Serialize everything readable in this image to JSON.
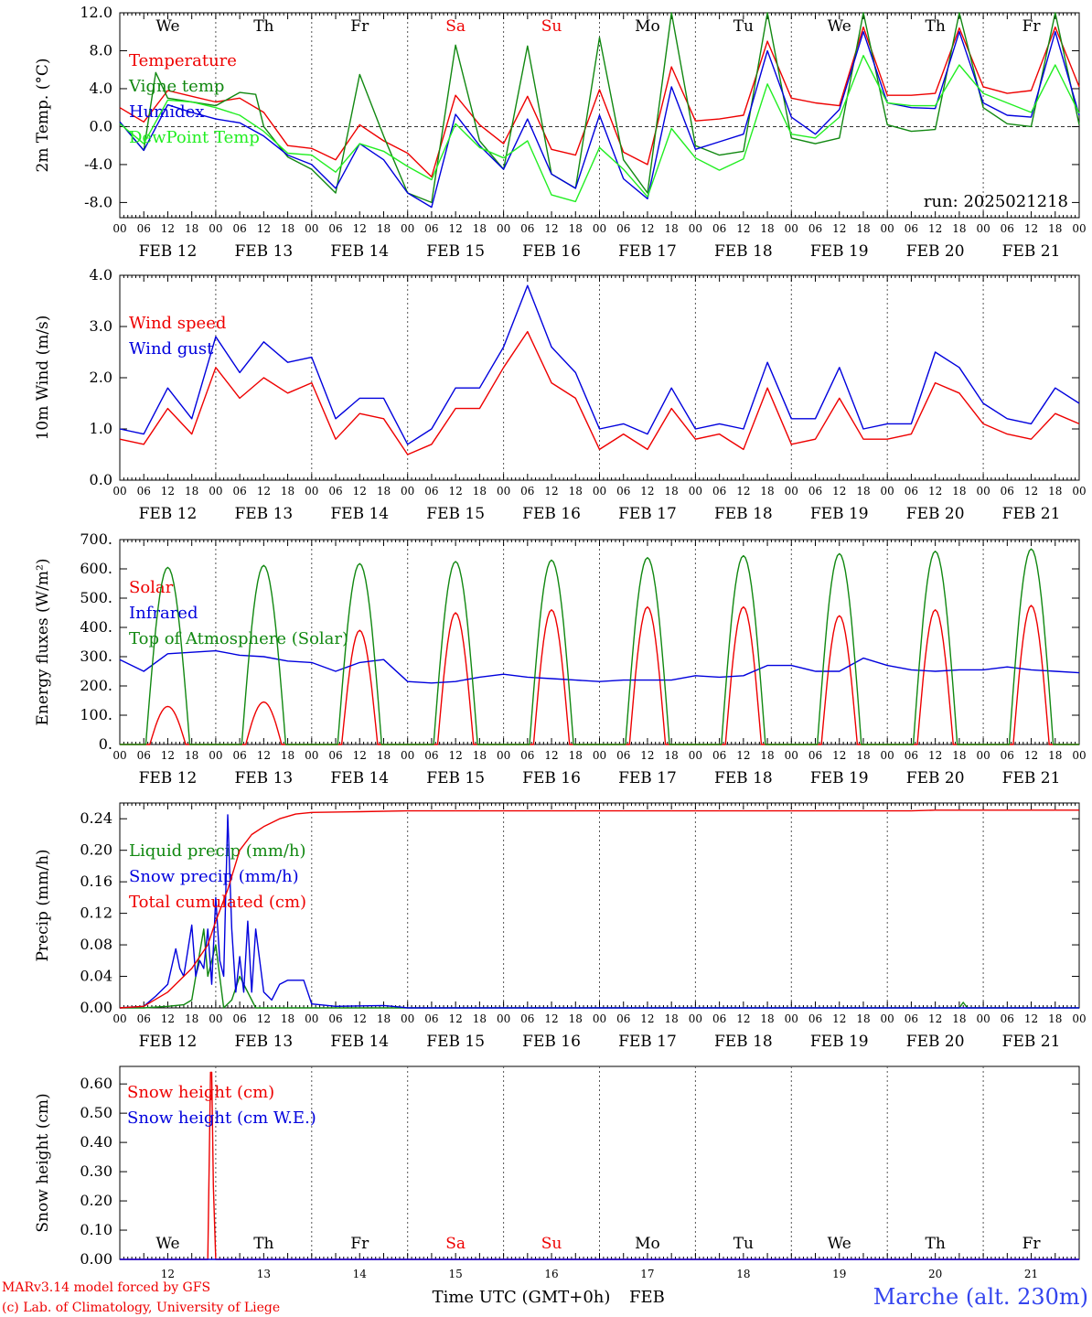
{
  "colors": {
    "red": "#ee0000",
    "green": "#118811",
    "blue": "#0000dd",
    "lightgreen": "#22ee22",
    "axis": "#000000"
  },
  "days": [
    "We",
    "Th",
    "Fr",
    "Sa",
    "Su",
    "Mo",
    "Tu",
    "We",
    "Th",
    "Fr"
  ],
  "weekend_days": [
    3,
    4
  ],
  "hour_ticks": [
    "00",
    "06",
    "12",
    "18"
  ],
  "final_tick": "00",
  "dates": [
    "FEB 12",
    "FEB 13",
    "FEB 14",
    "FEB 15",
    "FEB 16",
    "FEB 17",
    "FEB 18",
    "FEB 19",
    "FEB 20",
    "FEB 21"
  ],
  "day_numbers": [
    "12",
    "13",
    "14",
    "15",
    "16",
    "17",
    "18",
    "19",
    "20",
    "21"
  ],
  "chart_data": [
    {
      "type": "line",
      "ylabel": "2m Temp. (°C)",
      "ylim": [
        -9.6,
        12.0
      ],
      "yticks": [
        "-8.0",
        "-4.0",
        "0.0",
        "4.0",
        "8.0",
        "12.0"
      ],
      "annotation": "run: 2025021218",
      "x_unit": "hours from FEB 12 00 UTC",
      "series": [
        {
          "name": "Temperature",
          "color": "red",
          "x": [
            0,
            6,
            12,
            18,
            24,
            30,
            36,
            42,
            48,
            54,
            60,
            66,
            72,
            78,
            84,
            90,
            96,
            102,
            108,
            114,
            120,
            126,
            132,
            138,
            144,
            150,
            156,
            162,
            168,
            174,
            180,
            186,
            192,
            198,
            204,
            210,
            216,
            222,
            228,
            234,
            240
          ],
          "y": [
            2.0,
            0.5,
            3.8,
            3.2,
            2.6,
            3.0,
            1.5,
            -2.0,
            -2.3,
            -3.5,
            0.2,
            -1.5,
            -2.8,
            -5.3,
            3.3,
            0.2,
            -1.8,
            3.2,
            -2.4,
            -3.0,
            3.9,
            -2.7,
            -4.0,
            6.3,
            0.6,
            0.8,
            1.2,
            9.0,
            3.0,
            2.5,
            2.2,
            10.5,
            3.3,
            3.3,
            3.5,
            10.4,
            4.2,
            3.5,
            3.8,
            10.5,
            4.2
          ]
        },
        {
          "name": "Vigne temp",
          "color": "green",
          "x": [
            0,
            6,
            9,
            12,
            18,
            24,
            30,
            34,
            36,
            42,
            48,
            54,
            60,
            66,
            72,
            78,
            84,
            90,
            96,
            102,
            108,
            114,
            120,
            126,
            132,
            138,
            144,
            150,
            156,
            162,
            168,
            174,
            180,
            186,
            192,
            198,
            204,
            210,
            216,
            222,
            228,
            234,
            240
          ],
          "y": [
            0.5,
            -2.5,
            5.7,
            3.0,
            2.6,
            2.2,
            3.6,
            3.4,
            0.0,
            -3.2,
            -4.5,
            -7.0,
            5.5,
            -1.0,
            -7.0,
            -8.0,
            8.6,
            -1.5,
            -4.5,
            8.5,
            -5.0,
            -6.5,
            9.4,
            -3.5,
            -7.0,
            12.5,
            -2.0,
            -3.0,
            -2.6,
            13.0,
            -1.2,
            -1.8,
            -1.2,
            12.8,
            0.2,
            -0.5,
            -0.3,
            12.5,
            2.0,
            0.3,
            0.0,
            12.0,
            0.2
          ]
        },
        {
          "name": "Humidex",
          "color": "blue",
          "x": [
            0,
            6,
            12,
            18,
            24,
            30,
            36,
            42,
            48,
            54,
            60,
            66,
            72,
            78,
            84,
            90,
            96,
            102,
            108,
            114,
            120,
            126,
            132,
            138,
            144,
            150,
            156,
            162,
            168,
            174,
            180,
            186,
            192,
            198,
            204,
            210,
            216,
            222,
            228,
            234,
            240
          ],
          "y": [
            0.5,
            -2.5,
            2.3,
            1.5,
            0.8,
            0.4,
            -1.0,
            -3.0,
            -4.0,
            -6.5,
            -1.8,
            -3.5,
            -7.0,
            -8.5,
            1.3,
            -2.0,
            -4.5,
            0.8,
            -5.0,
            -6.5,
            1.2,
            -5.5,
            -7.6,
            4.2,
            -2.4,
            -1.6,
            -0.8,
            8.0,
            1.0,
            -0.8,
            1.8,
            10.0,
            2.5,
            2.0,
            1.9,
            10.0,
            2.5,
            1.2,
            1.0,
            10.0,
            1.2
          ]
        },
        {
          "name": "DewPoint Temp",
          "color": "lightgreen",
          "x": [
            0,
            6,
            12,
            18,
            24,
            30,
            36,
            42,
            48,
            54,
            60,
            66,
            72,
            78,
            84,
            90,
            96,
            102,
            108,
            114,
            120,
            126,
            132,
            138,
            144,
            150,
            156,
            162,
            168,
            174,
            180,
            186,
            192,
            198,
            204,
            210,
            216,
            222,
            228,
            234,
            240
          ],
          "y": [
            0.3,
            -1.8,
            2.8,
            2.6,
            2.0,
            1.2,
            -0.5,
            -2.8,
            -3.0,
            -4.8,
            -1.8,
            -2.6,
            -4.2,
            -5.6,
            0.3,
            -2.2,
            -3.3,
            -1.5,
            -7.2,
            -7.9,
            -2.2,
            -4.5,
            -7.4,
            -0.2,
            -3.3,
            -4.6,
            -3.4,
            4.5,
            -0.8,
            -1.2,
            1.0,
            7.5,
            2.5,
            2.2,
            2.2,
            6.5,
            3.5,
            2.5,
            1.5,
            6.5,
            1.4
          ]
        }
      ]
    },
    {
      "type": "line",
      "ylabel": "10m Wind (m/s)",
      "ylim": [
        0.0,
        4.0
      ],
      "yticks": [
        "0.0",
        "1.0",
        "2.0",
        "3.0",
        "4.0"
      ],
      "x_unit": "hours from FEB 12 00 UTC",
      "series": [
        {
          "name": "Wind speed",
          "color": "red",
          "x": [
            0,
            6,
            12,
            18,
            24,
            30,
            36,
            42,
            48,
            54,
            60,
            66,
            72,
            78,
            84,
            90,
            96,
            102,
            108,
            114,
            120,
            126,
            132,
            138,
            144,
            150,
            156,
            162,
            168,
            174,
            180,
            186,
            192,
            198,
            204,
            210,
            216,
            222,
            228,
            234,
            240
          ],
          "y": [
            0.8,
            0.7,
            1.4,
            0.9,
            2.2,
            1.6,
            2.0,
            1.7,
            1.9,
            0.8,
            1.3,
            1.2,
            0.5,
            0.7,
            1.4,
            1.4,
            2.2,
            2.9,
            1.9,
            1.6,
            0.6,
            0.9,
            0.6,
            1.4,
            0.8,
            0.9,
            0.6,
            1.8,
            0.7,
            0.8,
            1.6,
            0.8,
            0.8,
            0.9,
            1.9,
            1.7,
            1.1,
            0.9,
            0.8,
            1.3,
            1.1
          ]
        },
        {
          "name": "Wind gust",
          "color": "blue",
          "x": [
            0,
            6,
            12,
            18,
            24,
            30,
            36,
            42,
            48,
            54,
            60,
            66,
            72,
            78,
            84,
            90,
            96,
            102,
            108,
            114,
            120,
            126,
            132,
            138,
            144,
            150,
            156,
            162,
            168,
            174,
            180,
            186,
            192,
            198,
            204,
            210,
            216,
            222,
            228,
            234,
            240
          ],
          "y": [
            1.0,
            0.9,
            1.8,
            1.2,
            2.8,
            2.1,
            2.7,
            2.3,
            2.4,
            1.2,
            1.6,
            1.6,
            0.7,
            1.0,
            1.8,
            1.8,
            2.6,
            3.8,
            2.6,
            2.1,
            1.0,
            1.1,
            0.9,
            1.8,
            1.0,
            1.1,
            1.0,
            2.3,
            1.2,
            1.2,
            2.2,
            1.0,
            1.1,
            1.1,
            2.5,
            2.2,
            1.5,
            1.2,
            1.1,
            1.8,
            1.5
          ]
        }
      ]
    },
    {
      "type": "line",
      "ylabel": "Energy fluxes (W/m²)",
      "ylim": [
        0,
        700
      ],
      "yticks": [
        "0.",
        "100.",
        "200.",
        "300.",
        "400.",
        "500.",
        "600.",
        "700."
      ],
      "x_unit": "hours from FEB 12 00 UTC",
      "series": [
        {
          "name": "Solar",
          "color": "red",
          "peaks": [
            130,
            145,
            390,
            450,
            460,
            470,
            470,
            440,
            460,
            475
          ]
        },
        {
          "name": "Infrared",
          "color": "blue",
          "x": [
            0,
            6,
            12,
            18,
            24,
            30,
            36,
            42,
            48,
            54,
            60,
            66,
            72,
            78,
            84,
            90,
            96,
            102,
            108,
            114,
            120,
            126,
            132,
            138,
            144,
            150,
            156,
            162,
            168,
            174,
            180,
            186,
            192,
            198,
            204,
            210,
            216,
            222,
            228,
            234,
            240
          ],
          "y": [
            290,
            250,
            310,
            315,
            320,
            305,
            300,
            285,
            280,
            250,
            280,
            290,
            215,
            210,
            215,
            230,
            240,
            230,
            225,
            220,
            215,
            220,
            220,
            220,
            235,
            230,
            235,
            270,
            270,
            250,
            250,
            295,
            270,
            255,
            250,
            255,
            255,
            265,
            255,
            250,
            245
          ]
        },
        {
          "name": "Top of Atmosphere (Solar)",
          "color": "green",
          "peaks": [
            605,
            612,
            618,
            625,
            630,
            638,
            645,
            652,
            660,
            668
          ]
        }
      ]
    },
    {
      "type": "line",
      "ylabel": "Precip (mm/h)",
      "ylim": [
        0.0,
        0.26
      ],
      "yticks": [
        "0.00",
        "0.04",
        "0.08",
        "0.12",
        "0.16",
        "0.20",
        "0.24"
      ],
      "x_unit": "hours from FEB 12 00 UTC",
      "series": [
        {
          "name": "Liquid precip (mm/h)",
          "color": "green",
          "x": [
            0,
            6,
            12,
            16,
            18,
            20,
            21,
            22,
            24,
            26,
            28,
            30,
            34,
            36,
            210,
            211,
            212,
            240
          ],
          "y": [
            0,
            0,
            0.002,
            0.004,
            0.01,
            0.07,
            0.1,
            0.04,
            0.08,
            0.0,
            0.01,
            0.04,
            0.0,
            0.0,
            0.0,
            0.007,
            0.0,
            0.0
          ]
        },
        {
          "name": "Snow precip (mm/h)",
          "color": "blue",
          "x": [
            0,
            6,
            9,
            12,
            14,
            15,
            16,
            18,
            19,
            20,
            21,
            22,
            23,
            24,
            25,
            26,
            27,
            28,
            29,
            30,
            31,
            32,
            33,
            34,
            36,
            38,
            40,
            42,
            44,
            46,
            48,
            54,
            66,
            70,
            72,
            240
          ],
          "y": [
            0,
            0.002,
            0.015,
            0.03,
            0.075,
            0.05,
            0.04,
            0.105,
            0.04,
            0.06,
            0.05,
            0.1,
            0.03,
            0.14,
            0.06,
            0.04,
            0.245,
            0.1,
            0.02,
            0.065,
            0.02,
            0.11,
            0.02,
            0.1,
            0.02,
            0.01,
            0.03,
            0.035,
            0.035,
            0.035,
            0.005,
            0.002,
            0.003,
            0.001,
            0.0,
            0.0
          ]
        },
        {
          "name": "Total cumulated (cm)",
          "color": "red",
          "x": [
            0,
            6,
            12,
            18,
            22,
            24,
            27,
            30,
            33,
            36,
            40,
            44,
            48,
            60,
            72,
            84,
            120,
            168,
            198,
            204,
            240
          ],
          "y": [
            0,
            0.002,
            0.02,
            0.05,
            0.08,
            0.11,
            0.15,
            0.2,
            0.22,
            0.23,
            0.24,
            0.246,
            0.248,
            0.249,
            0.25,
            0.25,
            0.25,
            0.25,
            0.25,
            0.251,
            0.251
          ]
        }
      ]
    },
    {
      "type": "line",
      "ylabel": "Snow height (cm)",
      "ylim": [
        0.0,
        0.66
      ],
      "yticks": [
        "0.00",
        "0.10",
        "0.20",
        "0.30",
        "0.40",
        "0.50",
        "0.60"
      ],
      "x_unit": "hours from FEB 12 00 UTC",
      "series": [
        {
          "name": "Snow height (cm)",
          "color": "red",
          "x": [
            0,
            22,
            22.7,
            23,
            23.4,
            24,
            240
          ],
          "y": [
            0,
            0,
            0.64,
            0.64,
            0.25,
            0,
            0
          ]
        },
        {
          "name": "Snow height (cm W.E.)",
          "color": "blue",
          "x": [
            0,
            240
          ],
          "y": [
            0,
            0
          ]
        }
      ]
    }
  ],
  "footer": {
    "model_line": "MARv3.14 model forced by GFS",
    "lab_line": "(c) Lab. of Climatology, University of Liege",
    "x_title": "Time UTC (GMT+0h)",
    "x_title_month": "FEB",
    "station": "Marche (alt. 230m)"
  }
}
